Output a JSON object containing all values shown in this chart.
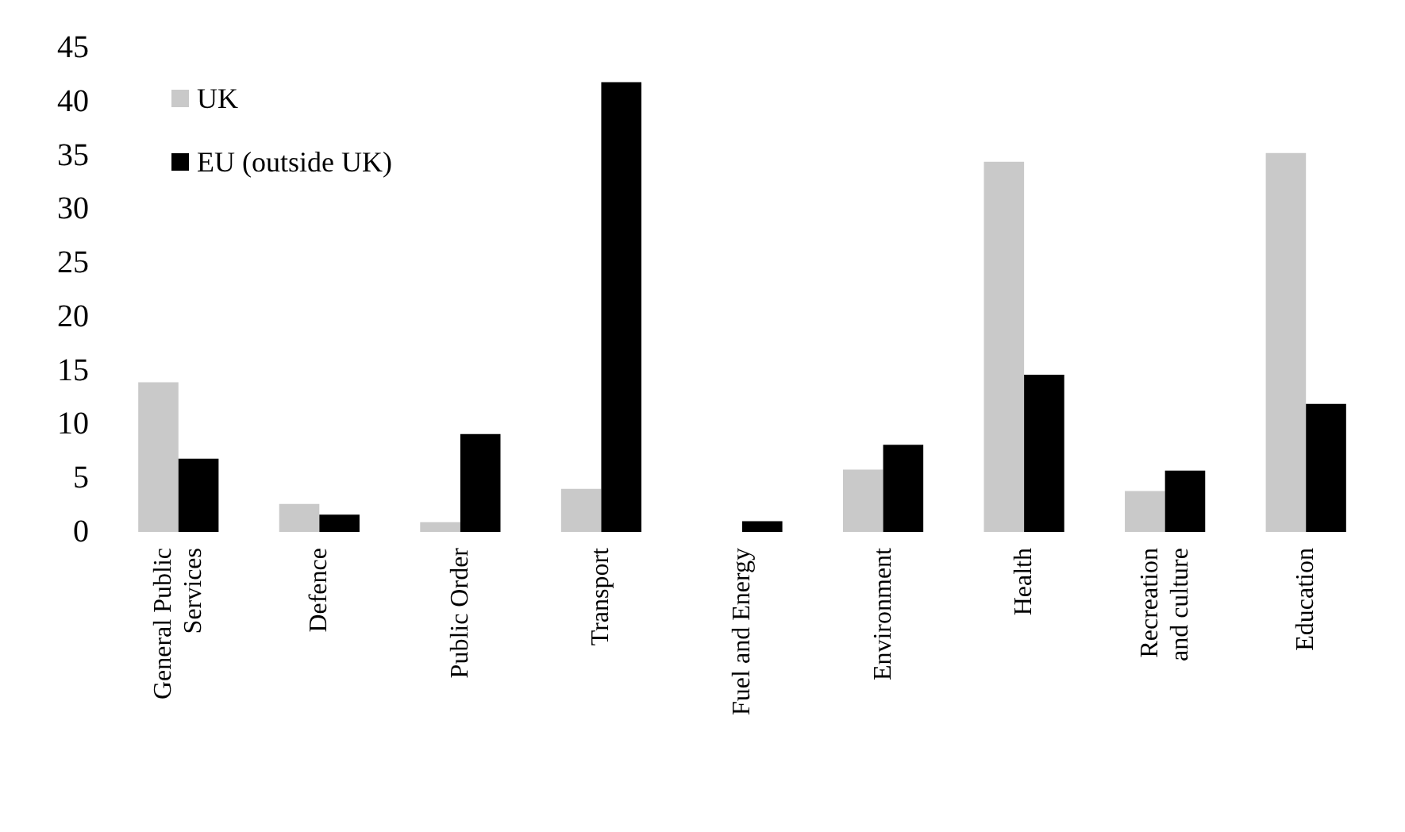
{
  "chart_data": {
    "type": "bar",
    "categories": [
      "General Public Services",
      "Defence",
      "Public Order",
      "Transport",
      "Fuel and Energy",
      "Environment",
      "Health",
      "Recreation and culture",
      "Education"
    ],
    "series": [
      {
        "name": "UK",
        "color": "#c9c9c9",
        "values": [
          13.9,
          2.6,
          0.9,
          4.0,
          0,
          5.8,
          34.4,
          3.8,
          35.2
        ]
      },
      {
        "name": "EU (outside UK)",
        "color": "#000000",
        "values": [
          6.8,
          1.6,
          9.1,
          41.8,
          1.0,
          8.1,
          14.6,
          5.7,
          11.9
        ]
      }
    ],
    "ylim": [
      0,
      45
    ],
    "yticks": [
      0,
      5,
      10,
      15,
      20,
      25,
      30,
      35,
      40,
      45
    ],
    "grid": false,
    "legend": "top left"
  }
}
